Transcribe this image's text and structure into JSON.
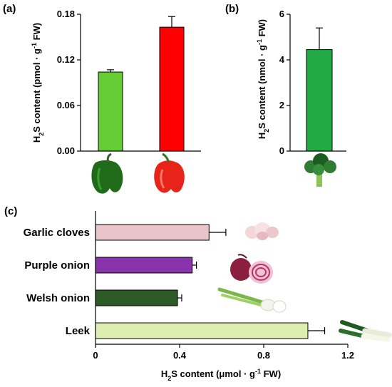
{
  "chart_data": [
    {
      "panel": "(a)",
      "type": "bar",
      "categories": [
        "green pepper",
        "red pepper"
      ],
      "values": [
        0.104,
        0.163
      ],
      "errors": [
        0.003,
        0.014
      ],
      "colors": [
        "#66cc33",
        "#ff0000"
      ],
      "ylabel_parts": [
        "H",
        "2",
        "S content (pmol · g",
        "-1",
        " FW)"
      ],
      "ylim": [
        0,
        0.18
      ],
      "yticks": [
        "0.00",
        "0.06",
        "0.12",
        "0.18"
      ],
      "ytick_values": [
        0,
        0.06,
        0.12,
        0.18
      ],
      "icons": [
        "green-pepper-icon",
        "red-pepper-icon"
      ]
    },
    {
      "panel": "(b)",
      "type": "bar",
      "categories": [
        "broccoli"
      ],
      "values": [
        4.45
      ],
      "errors": [
        0.95
      ],
      "colors": [
        "#22aa44"
      ],
      "ylabel_parts": [
        "H",
        "2",
        "S content (nmol · g",
        "-1",
        " FW)"
      ],
      "ylim": [
        0,
        6
      ],
      "yticks": [
        "0",
        "2",
        "4",
        "6"
      ],
      "ytick_values": [
        0,
        2,
        4,
        6
      ],
      "icons": [
        "broccoli-icon"
      ]
    },
    {
      "panel": "(c)",
      "type": "bar",
      "orientation": "horizontal",
      "categories": [
        "Garlic cloves",
        "Purple onion",
        "Welsh onion",
        "Leek"
      ],
      "values": [
        0.54,
        0.46,
        0.39,
        1.01
      ],
      "errors": [
        0.08,
        0.02,
        0.02,
        0.08
      ],
      "colors": [
        "#e8c4c8",
        "#8833aa",
        "#2d5a27",
        "#ddeeb0"
      ],
      "xlabel_parts": [
        "H",
        "2",
        "S content (μmol · g",
        "-1",
        " FW)"
      ],
      "xlim": [
        0,
        1.2
      ],
      "xticks": [
        "0",
        "0.4",
        "0.8",
        "1.2"
      ],
      "xtick_values": [
        0,
        0.4,
        0.8,
        1.2
      ],
      "icons": [
        "garlic-icon",
        "purple-onion-icon",
        "welsh-onion-icon",
        "leek-icon"
      ]
    }
  ]
}
